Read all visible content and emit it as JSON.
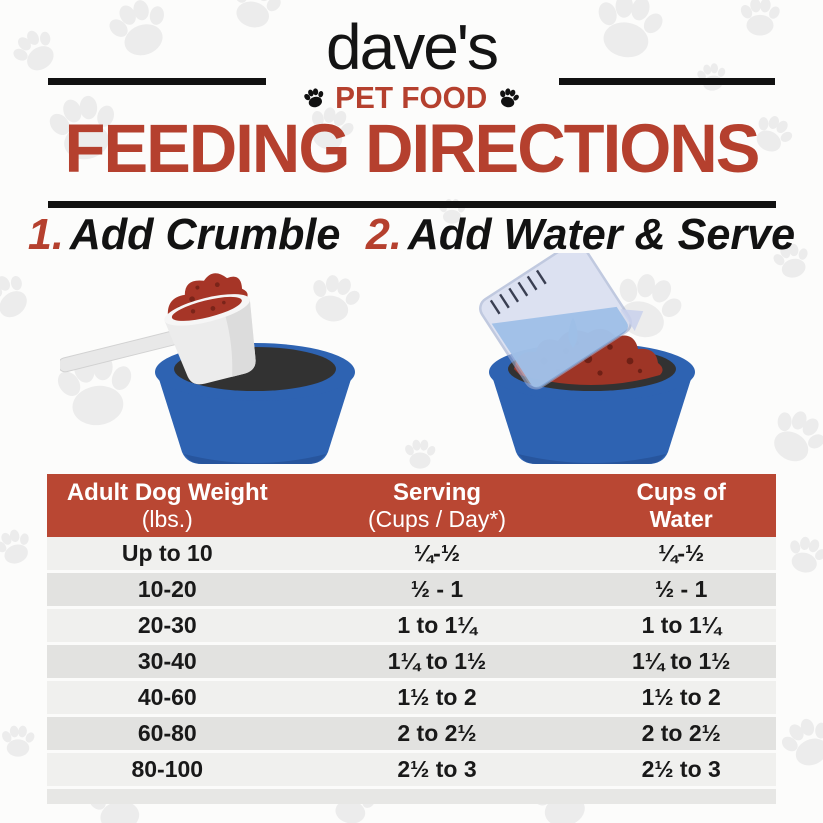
{
  "brand": {
    "name": "dave's",
    "subtitle": "PET FOOD"
  },
  "title": "FEEDING DIRECTIONS",
  "steps": [
    {
      "num": "1.",
      "label": "Add Crumble"
    },
    {
      "num": "2.",
      "label": "Add Water & Serve"
    }
  ],
  "illustrations": [
    {
      "name": "scoop-crumble-into-bowl"
    },
    {
      "name": "pour-water-into-bowl"
    }
  ],
  "table": {
    "headers": [
      {
        "top": "Adult Dog Weight",
        "bottom": "(lbs.)"
      },
      {
        "top": "Serving",
        "bottom": "(Cups / Day*)"
      },
      {
        "top": "Cups of",
        "bottom": "Water"
      }
    ],
    "rows": [
      [
        "Up to 10",
        "¼-½",
        "¼-½"
      ],
      [
        "10-20",
        "½ - 1",
        "½ - 1"
      ],
      [
        "20-30",
        "1 to 1¼",
        "1 to 1¼"
      ],
      [
        "30-40",
        "1¼ to 1½",
        "1¼ to 1½"
      ],
      [
        "40-60",
        "1½ to 2",
        "1½ to 2"
      ],
      [
        "60-80",
        "2 to 2½",
        "2 to 2½"
      ],
      [
        "80-100",
        "2½ to 3",
        "2½ to 3"
      ]
    ]
  },
  "colors": {
    "brand_red": "#b5402e",
    "table_header_red": "#b94733",
    "bowl_blue": "#2e63b2",
    "water_blue": "#5ba3e0",
    "crumble_red": "#a63527",
    "row_light": "#f0f0ee",
    "row_dark": "#e2e2e0",
    "paw_gray": "#ececec",
    "black": "#111111"
  }
}
